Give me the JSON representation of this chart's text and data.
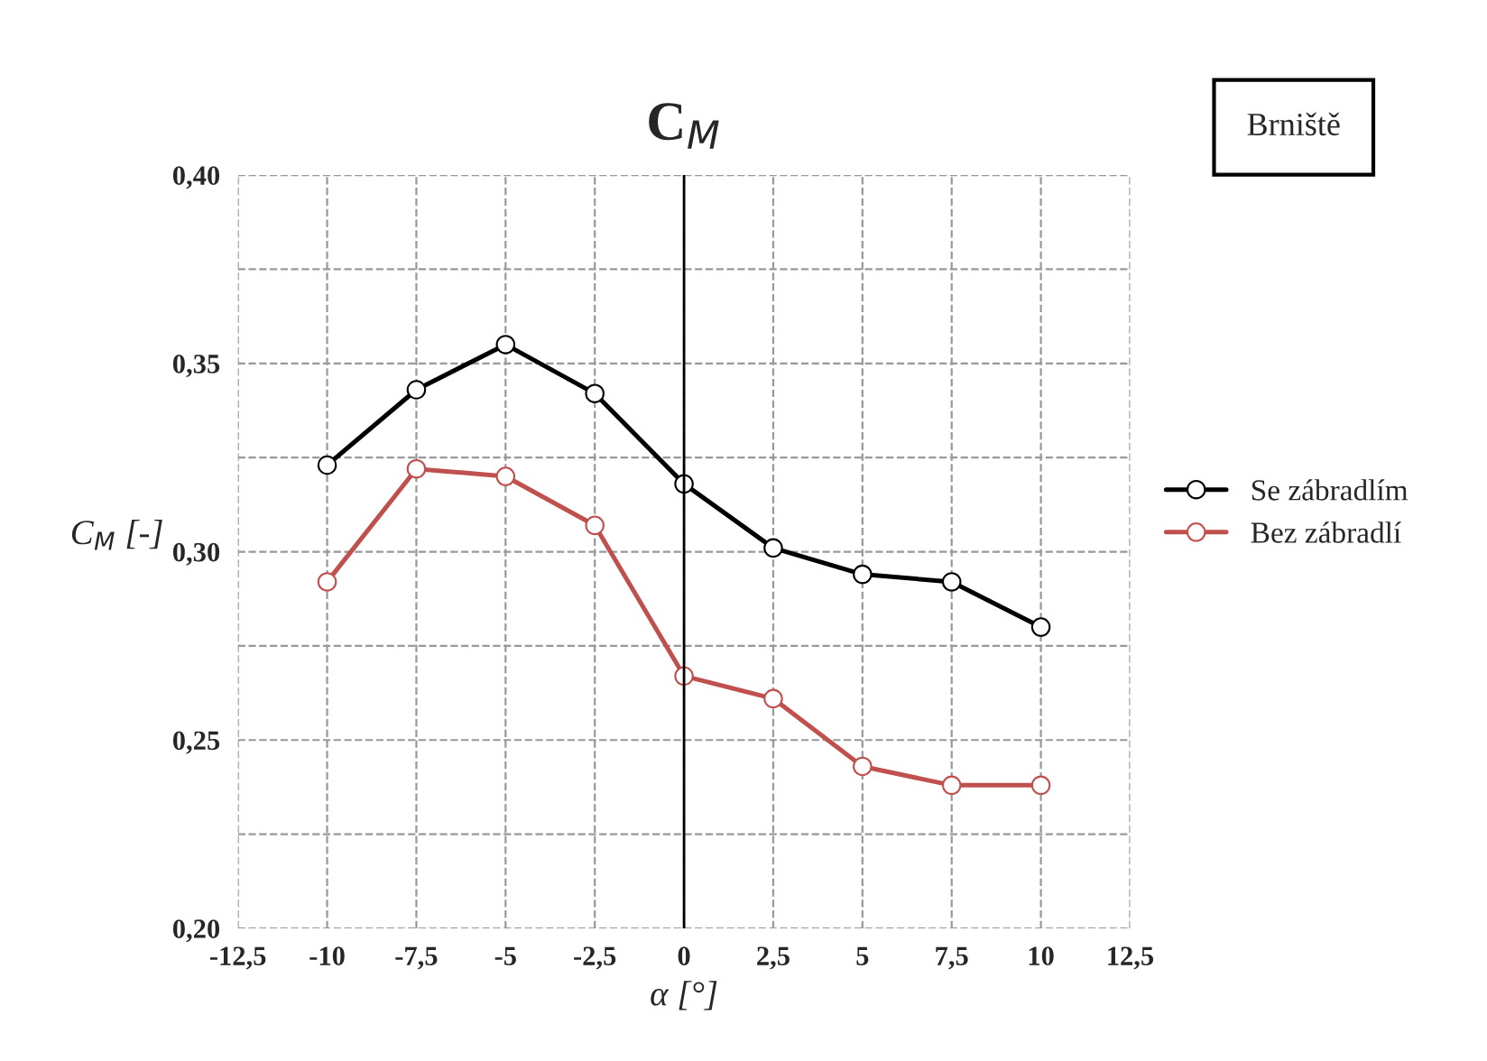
{
  "chart_data": {
    "type": "line",
    "title": "C$_{M}$",
    "xlabel": "α [°]",
    "ylabel": "C$_{M}$ [-]",
    "annotations": [
      "Brniště"
    ],
    "x": [
      -10,
      -7.5,
      -5,
      -2.5,
      0,
      2.5,
      5,
      7.5,
      10
    ],
    "series": [
      {
        "name": "Se zábradlím",
        "color": "#000000",
        "values": [
          0.323,
          0.343,
          0.355,
          0.342,
          0.318,
          0.301,
          0.294,
          0.292,
          0.28
        ]
      },
      {
        "name": "Bez zábradlí",
        "color": "#c0504d",
        "values": [
          0.292,
          0.322,
          0.32,
          0.307,
          0.267,
          0.261,
          0.243,
          0.238,
          0.238
        ]
      }
    ],
    "xlim": [
      -12.5,
      12.5
    ],
    "xticks": [
      {
        "value": -12.5,
        "label": "-12,5"
      },
      {
        "value": -10,
        "label": "-10"
      },
      {
        "value": -7.5,
        "label": "-7,5"
      },
      {
        "value": -5,
        "label": "-5"
      },
      {
        "value": -2.5,
        "label": "-2,5"
      },
      {
        "value": 0,
        "label": "0"
      },
      {
        "value": 2.5,
        "label": "2,5"
      },
      {
        "value": 5,
        "label": "5"
      },
      {
        "value": 7.5,
        "label": "7,5"
      },
      {
        "value": 10,
        "label": "10"
      },
      {
        "value": 12.5,
        "label": "12,5"
      }
    ],
    "ylim": [
      0.2,
      0.4
    ],
    "yticks": [
      {
        "value": 0.2,
        "label": "0,20"
      },
      {
        "value": 0.225,
        "label": null
      },
      {
        "value": 0.25,
        "label": "0,25"
      },
      {
        "value": 0.275,
        "label": null
      },
      {
        "value": 0.3,
        "label": "0,30"
      },
      {
        "value": 0.325,
        "label": null
      },
      {
        "value": 0.35,
        "label": "0,35"
      },
      {
        "value": 0.375,
        "label": null
      },
      {
        "value": 0.4,
        "label": "0,40"
      }
    ],
    "ref_lines": [
      {
        "axis": "x",
        "value": 0,
        "color": "#000000",
        "line_style": "solid"
      }
    ],
    "grid": true,
    "legend": "right",
    "marker": "circle",
    "line_style": "solid"
  }
}
